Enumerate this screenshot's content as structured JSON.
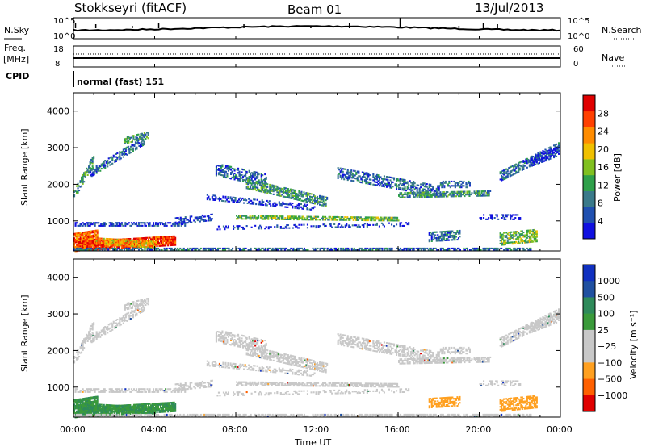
{
  "header": {
    "station": "Stokkseyri (fitACF)",
    "beam": "Beam 01",
    "date": "13/Jul/2013"
  },
  "panels": {
    "nsky_label": "N.Sky",
    "nsky_ticks": [
      "10^5",
      "10^0"
    ],
    "nsearch_label": "N.Search",
    "nsearch_ticks": [
      "10^5",
      "10^0"
    ],
    "freq_label": "Freq.",
    "freq_unit": "[MHz]",
    "freq_ticks": [
      "18",
      "8"
    ],
    "nave_label": "Nave",
    "nave_ticks": [
      "60",
      "0"
    ],
    "cpid_label": "CPID",
    "cpid_text": "normal (fast) 151"
  },
  "colors": {
    "power": [
      "#1010e0",
      "#2050b0",
      "#3a7a8a",
      "#2fa04a",
      "#80c020",
      "#f0c000",
      "#ff8c00",
      "#ff4000",
      "#e00000"
    ],
    "velocity": [
      "#e00000",
      "#ff6000",
      "#ffa020",
      "#c8c8c8",
      "#c8c8c8",
      "#3a9a3a",
      "#2e8a5a",
      "#2050a0",
      "#1030c0"
    ],
    "ground": "#8a8a8a"
  },
  "chart_data": [
    {
      "type": "heatmap",
      "name": "Power",
      "ylabel": "Slant Range [km]",
      "yticks": [
        "1000",
        "2000",
        "3000",
        "4000"
      ],
      "ylim": [
        180,
        4500
      ],
      "xlim_hours": [
        0,
        24
      ],
      "colorbar_label": "Power [dB]",
      "colorbar_ticks": [
        "4",
        "8",
        "12",
        "16",
        "20",
        "24",
        "28"
      ],
      "colorbar_range": [
        0,
        32
      ]
    },
    {
      "type": "heatmap",
      "name": "Velocity",
      "ylabel": "Slant Range [km]",
      "yticks": [
        "1000",
        "2000",
        "3000",
        "4000"
      ],
      "ylim": [
        180,
        4500
      ],
      "xlim_hours": [
        0,
        24
      ],
      "xlabel": "Time UT",
      "xticks": [
        "00:00",
        "04:00",
        "08:00",
        "12:00",
        "16:00",
        "20:00",
        "00:00"
      ],
      "colorbar_label": "Velocity [m s⁻¹]",
      "colorbar_ticks": [
        "1000",
        "500",
        "100",
        "25",
        "−25",
        "−100",
        "−500",
        "−1000"
      ]
    }
  ]
}
